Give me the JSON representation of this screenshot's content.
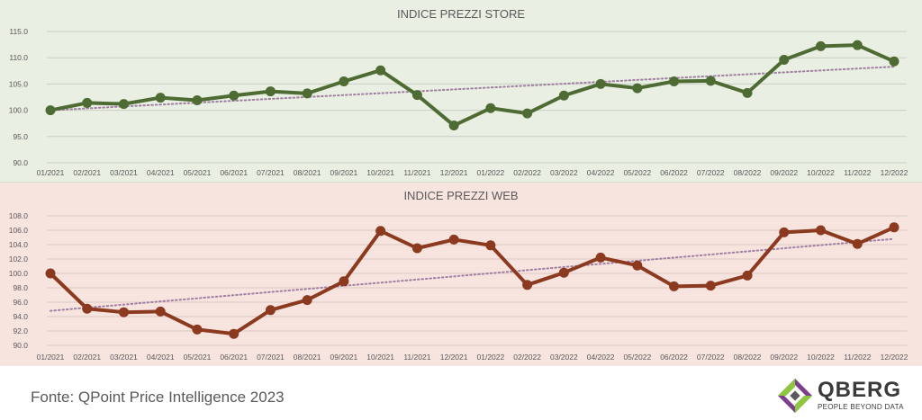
{
  "chart_data": [
    {
      "type": "line",
      "title": "INDICE PREZZI STORE",
      "categories": [
        "01/2021",
        "02/2021",
        "03/2021",
        "04/2021",
        "05/2021",
        "06/2021",
        "07/2021",
        "08/2021",
        "09/2021",
        "10/2021",
        "11/2021",
        "12/2021",
        "01/2022",
        "02/2022",
        "03/2022",
        "04/2022",
        "05/2022",
        "06/2022",
        "07/2022",
        "08/2022",
        "09/2022",
        "10/2022",
        "11/2022",
        "12/2022"
      ],
      "values": [
        100.0,
        101.4,
        101.2,
        102.4,
        101.9,
        102.8,
        103.6,
        103.2,
        105.5,
        107.6,
        102.9,
        97.1,
        100.4,
        99.4,
        102.8,
        105.0,
        104.2,
        105.5,
        105.6,
        103.3,
        109.6,
        112.2,
        112.4,
        109.3
      ],
      "trendline": [
        100.0,
        108.3
      ],
      "ylim": [
        90.0,
        115.0
      ],
      "yticks": [
        "115.0",
        "110.0",
        "105.0",
        "100.0",
        "95.0",
        "90.0"
      ],
      "line_color": "#4e6b33",
      "trend_color": "#a07fa2",
      "grid": true
    },
    {
      "type": "line",
      "title": "INDICE PREZZI WEB",
      "categories": [
        "01/2021",
        "02/2021",
        "03/2021",
        "04/2021",
        "05/2021",
        "06/2021",
        "07/2021",
        "08/2021",
        "09/2021",
        "10/2021",
        "11/2021",
        "12/2021",
        "01/2022",
        "02/2022",
        "03/2022",
        "04/2022",
        "05/2022",
        "06/2022",
        "07/2022",
        "08/2022",
        "09/2022",
        "10/2022",
        "11/2022",
        "12/2022"
      ],
      "values": [
        100.0,
        95.1,
        94.6,
        94.7,
        92.2,
        91.6,
        94.9,
        96.3,
        98.9,
        105.9,
        103.5,
        104.7,
        103.9,
        98.4,
        100.1,
        102.2,
        101.1,
        98.2,
        98.3,
        99.7,
        105.7,
        106.0,
        104.1,
        106.4
      ],
      "trendline": [
        94.8,
        104.8
      ],
      "ylim": [
        90.0,
        108.0
      ],
      "yticks": [
        "108.0",
        "106.0",
        "104.0",
        "102.0",
        "100.0",
        "98.0",
        "96.0",
        "94.0",
        "92.0",
        "90.0"
      ],
      "line_color": "#8b3a1f",
      "trend_color": "#a07fa2",
      "grid": true
    }
  ],
  "footer": {
    "source": "Fonte: QPoint Price Intelligence 2023",
    "logo_word": "QBERG",
    "logo_tagline": "PEOPLE BEYOND DATA"
  },
  "colors": {
    "store_panel": "#e9efe3",
    "web_panel": "#f8e4df",
    "logo_green": "#8dc63f",
    "logo_purple": "#7b3f8c"
  }
}
